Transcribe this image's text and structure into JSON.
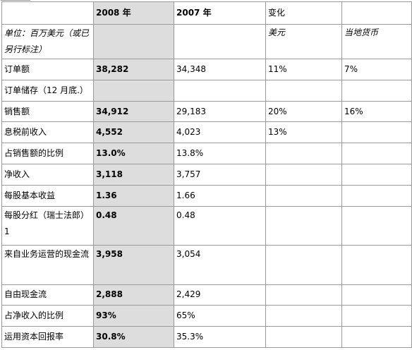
{
  "header": {
    "col0": "",
    "col1": "2008 年",
    "col2": "2007 年",
    "col3": "变化",
    "col4": ""
  },
  "subheader": {
    "label": "单位：百万美元（或已另行标注）",
    "col1": "",
    "col2": "",
    "col3": "美元",
    "col4": "当地货币"
  },
  "rows": [
    {
      "label": "订单额",
      "v2008": "38,282",
      "v2007": "34,348",
      "usd": "11%",
      "local": "7%"
    },
    {
      "label": "订单储存（12 月底.）",
      "v2008": "",
      "v2007": "",
      "usd": "",
      "local": ""
    },
    {
      "label": "销售额",
      "v2008": "34,912",
      "v2007": "29,183",
      "usd": "20%",
      "local": "16%"
    },
    {
      "label": "息税前收入",
      "v2008": "4,552",
      "v2007": "4,023",
      "usd": "13%",
      "local": ""
    },
    {
      "label": "占销售额的比例",
      "v2008": "13.0%",
      "v2007": "13.8%",
      "usd": "",
      "local": ""
    },
    {
      "label": "净收入",
      "v2008": "3,118",
      "v2007": "3,757",
      "usd": "",
      "local": ""
    },
    {
      "label": "每股基本收益",
      "v2008": "1.36",
      "v2007": "1.66",
      "usd": "",
      "local": ""
    },
    {
      "label": "每股分红（瑞士法郎）1",
      "v2008": "0.48",
      "v2007": "0.48",
      "usd": "",
      "local": ""
    },
    {
      "label": "来自业务运营的现金流",
      "v2008": "3,958",
      "v2007": "3,054",
      "usd": "",
      "local": ""
    },
    {
      "label": "自由现金流",
      "v2008": "2,888",
      "v2007": "2,429",
      "usd": "",
      "local": ""
    },
    {
      "label": "占净收入的比例",
      "v2008": "93%",
      "v2007": "65%",
      "usd": "",
      "local": ""
    },
    {
      "label": "运用资本回报率",
      "v2008": "30.8%",
      "v2007": "35.3%",
      "usd": "",
      "local": ""
    }
  ]
}
